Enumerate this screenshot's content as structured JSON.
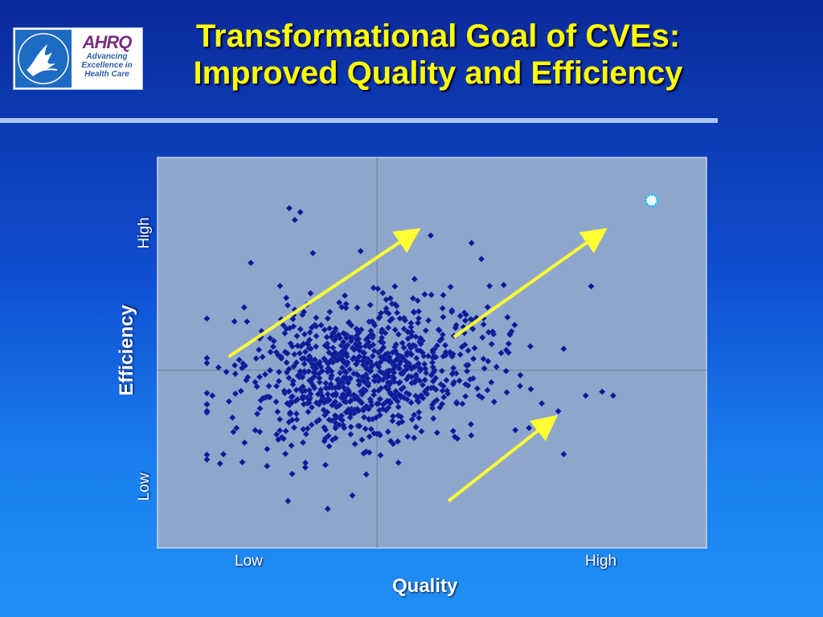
{
  "slide": {
    "title_line1": "Transformational Goal of CVEs:",
    "title_line2": "Improved Quality and Efficiency",
    "logo": {
      "ahrq_word": "AHRQ",
      "ahrq_tag1": "Advancing",
      "ahrq_tag2": "Excellence in",
      "ahrq_tag3": "Health Care"
    }
  },
  "colors": {
    "plot_bg": "#8fa6cc",
    "points": "#0a1a8a",
    "arrows": "#ffff33",
    "target": "#00ccff"
  },
  "chart_data": {
    "type": "scatter",
    "title": "",
    "xlabel": "Quality",
    "ylabel": "Efficiency",
    "x_ticks": [
      "Low",
      "High"
    ],
    "y_ticks": [
      "Low",
      "High"
    ],
    "xlim": [
      0,
      10
    ],
    "ylim": [
      0,
      10
    ],
    "grid": false,
    "quadrant_lines": {
      "x": 4,
      "y": 4.55
    },
    "cluster": {
      "count": 900,
      "center": [
        3.8,
        4.5
      ],
      "spread": [
        1.15,
        0.92
      ],
      "seed": 7
    },
    "outliers": [
      [
        2.4,
        8.7
      ],
      [
        2.6,
        8.6
      ],
      [
        2.5,
        8.4
      ],
      [
        1.7,
        7.3
      ],
      [
        3.7,
        7.6
      ],
      [
        5.9,
        7.4
      ],
      [
        7.9,
        6.7
      ],
      [
        1.4,
        5.8
      ],
      [
        7.4,
        5.1
      ],
      [
        7.3,
        3.5
      ],
      [
        7.8,
        3.9
      ],
      [
        8.3,
        3.9
      ],
      [
        8.1,
        4.0
      ],
      [
        1.0,
        3.9
      ],
      [
        1.2,
        2.4
      ],
      [
        3.1,
        1.0
      ],
      [
        7.4,
        2.4
      ],
      [
        7.0,
        3.7
      ]
    ],
    "arrows": [
      {
        "from": [
          1.3,
          4.9
        ],
        "to": [
          4.7,
          8.1
        ]
      },
      {
        "from": [
          5.4,
          5.4
        ],
        "to": [
          8.1,
          8.1
        ]
      },
      {
        "from": [
          5.3,
          1.2
        ],
        "to": [
          7.2,
          3.3
        ]
      }
    ],
    "target": [
      9.0,
      8.9
    ]
  }
}
